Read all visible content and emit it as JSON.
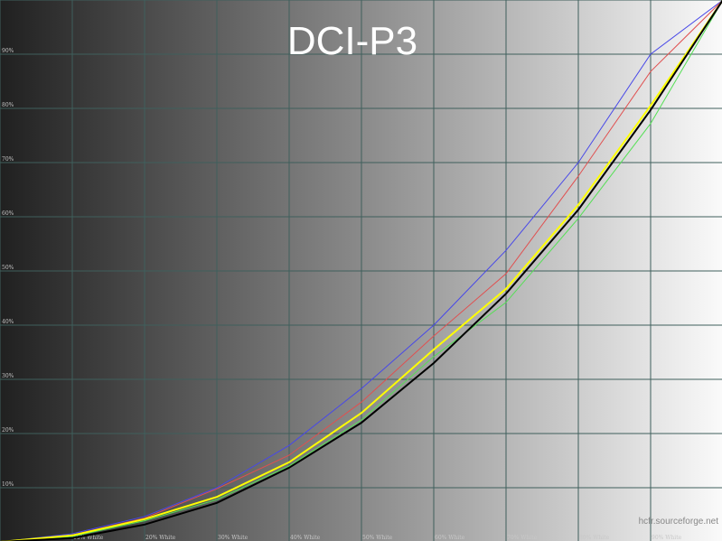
{
  "chart_data": {
    "type": "line",
    "title": "DCI-P3",
    "watermark": "hcfr.sourceforge.net",
    "xlim": [
      0,
      100
    ],
    "ylim": [
      0,
      100
    ],
    "grid": true,
    "background": "grayscale gradient dark-to-light",
    "x": [
      0,
      10,
      20,
      30,
      40,
      50,
      60,
      70,
      80,
      90,
      100
    ],
    "x_tick_labels": [
      "10% White",
      "20% White",
      "30% White",
      "40% White",
      "50% White",
      "60% White",
      "70% White",
      "80% White",
      "90% White"
    ],
    "y_tick_labels": [
      "10%",
      "20%",
      "30%",
      "40%",
      "50%",
      "60%",
      "70%",
      "80%",
      "90%"
    ],
    "series": [
      {
        "color": "#4848e8",
        "values": [
          0,
          1.5,
          4.7,
          10.0,
          17.8,
          28.3,
          40.0,
          53.8,
          70.0,
          90.0,
          100
        ]
      },
      {
        "color": "#e05050",
        "values": [
          0,
          1.3,
          4.4,
          9.8,
          16.0,
          25.8,
          38.0,
          49.5,
          67.5,
          86.8,
          100
        ]
      },
      {
        "color": "#55e055",
        "values": [
          0,
          1.0,
          3.9,
          7.8,
          14.0,
          22.5,
          34.2,
          44.2,
          59.7,
          77.2,
          100
        ]
      },
      {
        "color": "#ffff00",
        "values": [
          0,
          1.2,
          4.2,
          8.3,
          14.7,
          23.8,
          35.5,
          46.7,
          62.2,
          80.5,
          100
        ]
      },
      {
        "color": "#000000",
        "values": [
          0,
          0.7,
          3.2,
          7.2,
          13.7,
          22.0,
          33.0,
          45.8,
          61.3,
          79.7,
          100
        ]
      }
    ]
  }
}
